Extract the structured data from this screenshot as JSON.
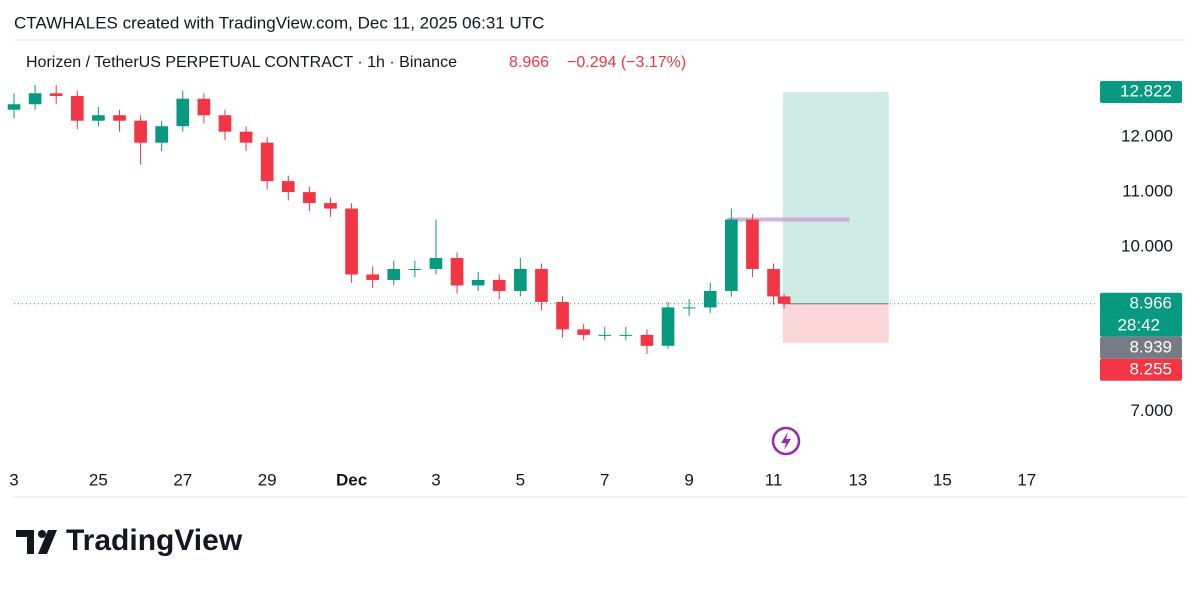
{
  "header": "CTAWHALES created with TradingView.com, Dec 11, 2025 06:31 UTC",
  "footer_logo": "TradingView",
  "chart_data": {
    "type": "candlestick",
    "legend": {
      "title": "Horizen / TetherUS PERPETUAL CONTRACT · 1h · Binance",
      "price": 8.966,
      "change": "−0.294 (−3.17%)"
    },
    "up_color": "#089981",
    "down_color": "#f23645",
    "x": [
      0,
      0.5,
      1,
      1.5,
      2,
      2.5,
      3,
      3.5,
      4,
      4.5,
      5,
      5.5,
      6,
      6.5,
      7,
      7.5,
      8,
      8.5,
      9,
      9.5,
      10,
      10.5,
      11,
      11.5,
      12,
      12.5,
      13,
      13.5,
      14,
      14.5,
      15,
      15.5,
      16,
      16.5,
      17,
      17.5,
      18,
      18.25
    ],
    "open": [
      12.5,
      12.6,
      12.8,
      12.75,
      12.3,
      12.4,
      12.3,
      11.9,
      12.2,
      12.7,
      12.4,
      12.1,
      11.9,
      11.2,
      11.0,
      10.8,
      10.7,
      9.5,
      9.4,
      9.6,
      9.6,
      9.8,
      9.3,
      9.4,
      9.2,
      9.6,
      9.0,
      8.5,
      8.4,
      8.4,
      8.4,
      8.2,
      8.9,
      8.9,
      9.2,
      10.5,
      9.6,
      9.1
    ],
    "high": [
      12.8,
      12.95,
      12.95,
      12.85,
      12.55,
      12.5,
      12.4,
      12.3,
      12.85,
      12.8,
      12.5,
      12.2,
      12.0,
      11.3,
      11.1,
      10.9,
      10.8,
      9.65,
      9.75,
      9.75,
      10.5,
      9.9,
      9.55,
      9.5,
      9.8,
      9.7,
      9.1,
      8.6,
      8.55,
      8.55,
      8.5,
      9.0,
      9.05,
      9.35,
      10.7,
      10.6,
      9.7,
      9.15
    ],
    "low": [
      12.35,
      12.5,
      12.6,
      12.15,
      12.2,
      12.1,
      11.5,
      11.75,
      12.1,
      12.25,
      11.95,
      11.75,
      11.05,
      10.85,
      10.65,
      10.55,
      9.35,
      9.25,
      9.3,
      9.45,
      9.5,
      9.15,
      9.2,
      9.05,
      9.1,
      8.85,
      8.35,
      8.3,
      8.3,
      8.3,
      8.05,
      8.15,
      8.75,
      8.8,
      9.1,
      9.45,
      8.95,
      8.88
    ],
    "close": [
      12.6,
      12.8,
      12.75,
      12.3,
      12.4,
      12.3,
      11.9,
      12.2,
      12.7,
      12.4,
      12.1,
      11.9,
      11.2,
      11.0,
      10.8,
      10.7,
      9.5,
      9.4,
      9.6,
      9.6,
      9.8,
      9.3,
      9.4,
      9.2,
      9.6,
      9.0,
      8.5,
      8.4,
      8.4,
      8.4,
      8.2,
      8.9,
      8.9,
      9.2,
      10.5,
      9.6,
      9.1,
      8.966
    ],
    "xlim": [
      0,
      25.5
    ],
    "xticks": [
      {
        "value": 0,
        "label": "3"
      },
      {
        "value": 2,
        "label": "25"
      },
      {
        "value": 4,
        "label": "27"
      },
      {
        "value": 6,
        "label": "29"
      },
      {
        "value": 8,
        "label": "Dec"
      },
      {
        "value": 10,
        "label": "3"
      },
      {
        "value": 12,
        "label": "5"
      },
      {
        "value": 14,
        "label": "7"
      },
      {
        "value": 16,
        "label": "9"
      },
      {
        "value": 18,
        "label": "11"
      },
      {
        "value": 20,
        "label": "13"
      },
      {
        "value": 22,
        "label": "15"
      },
      {
        "value": 24,
        "label": "17"
      }
    ],
    "ylim": [
      6.03,
      13.77
    ],
    "yticks": [
      {
        "value": 7,
        "label": "7.000"
      },
      {
        "value": 10,
        "label": "10.000"
      },
      {
        "value": 11,
        "label": "11.000"
      },
      {
        "value": 12,
        "label": "12.000"
      }
    ],
    "last_price": 8.966,
    "position": {
      "entry": 8.966,
      "target": 12.822,
      "stop": 8.255,
      "x_start": 18.22,
      "x_end": 20.73
    },
    "reference_line": {
      "value": 10.5,
      "x_start": 16.9,
      "x_end": 19.8
    },
    "price_labels": [
      {
        "value": 12.822,
        "color": "#089981"
      },
      {
        "value": 8.966,
        "countdown": "28:42",
        "color": "#089981"
      },
      {
        "value": 8.939,
        "color": "#787b86"
      },
      {
        "value": 8.255,
        "color": "#f23645"
      }
    ]
  }
}
